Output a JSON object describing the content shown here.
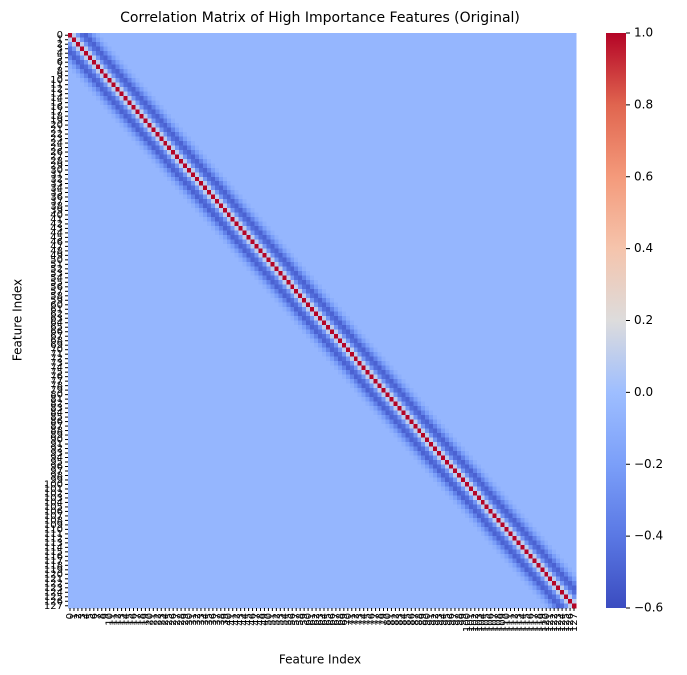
{
  "chart_data": {
    "type": "heatmap",
    "title": "Correlation Matrix of High Importance Features (Original)",
    "x_label": "Feature Index",
    "y_label": "Feature Index",
    "categories": [
      0,
      1,
      2,
      3,
      4,
      5,
      6,
      7,
      8,
      9,
      10,
      11,
      12,
      13,
      14,
      15,
      16,
      17,
      18,
      19,
      20,
      21,
      22,
      23,
      24,
      25,
      26,
      27,
      28,
      29,
      30,
      31,
      32,
      33,
      34,
      35,
      36,
      37,
      38,
      39,
      40,
      41,
      42,
      43,
      44,
      45,
      46,
      47,
      48,
      49,
      50,
      51,
      52,
      53,
      54,
      55,
      56,
      57,
      58,
      59,
      60,
      61,
      62,
      63,
      64,
      65,
      66,
      67,
      68,
      69,
      70,
      71,
      72,
      73,
      74,
      75,
      76,
      77,
      78,
      79,
      80,
      81,
      82,
      83,
      84,
      85,
      86,
      87,
      88,
      89,
      90,
      91,
      92,
      93,
      94,
      95,
      96,
      97,
      98,
      99,
      100,
      101,
      102,
      103,
      104,
      105,
      106,
      107,
      108,
      109,
      110,
      111,
      112,
      113,
      114,
      115,
      116,
      117,
      118,
      119,
      120,
      121,
      122,
      123,
      124,
      125,
      126,
      127
    ],
    "values_by_offset": [
      1,
      0.1,
      -0.25,
      -0.45,
      -0.5,
      -0.35,
      -0.2,
      -0.1,
      -0.05,
      -0.05,
      -0.05,
      -0.05,
      -0.05,
      -0.05,
      -0.05,
      -0.05,
      -0.05,
      -0.05,
      -0.05,
      -0.05,
      -0.05,
      -0.05,
      -0.05,
      -0.05,
      -0.05,
      -0.05,
      -0.05,
      -0.05,
      -0.05,
      -0.05,
      -0.05,
      -0.05,
      -0.05,
      -0.05,
      -0.05,
      -0.05,
      -0.05,
      -0.05,
      -0.05,
      -0.05,
      -0.05,
      -0.05,
      -0.05,
      -0.05,
      -0.05,
      -0.05,
      -0.05,
      -0.05,
      -0.05,
      -0.05,
      -0.05,
      -0.05,
      -0.05,
      -0.05,
      -0.05,
      -0.05,
      -0.05,
      -0.05,
      -0.05,
      -0.05,
      -0.05,
      -0.05,
      -0.05,
      -0.05,
      -0.05,
      -0.05,
      -0.05,
      -0.05,
      -0.05,
      -0.05,
      -0.05,
      -0.05,
      -0.05,
      -0.05,
      -0.05,
      -0.05,
      -0.05,
      -0.05,
      -0.05,
      -0.05,
      -0.05,
      -0.05,
      -0.05,
      -0.05,
      -0.05,
      -0.05,
      -0.05,
      -0.05,
      -0.05,
      -0.05,
      -0.05,
      -0.05,
      -0.05,
      -0.05,
      -0.05,
      -0.05,
      -0.05,
      -0.05,
      -0.05,
      -0.05,
      -0.05,
      -0.05,
      -0.05,
      -0.05,
      -0.05,
      -0.05,
      -0.05,
      -0.05,
      -0.05,
      -0.05,
      -0.05,
      -0.05,
      -0.05,
      -0.05,
      -0.05,
      -0.05,
      -0.05,
      -0.05,
      -0.05,
      -0.05,
      -0.05,
      -0.05,
      -0.05,
      -0.05,
      -0.05,
      -0.05,
      -0.05,
      -0.05
    ],
    "colormap": "coolwarm",
    "clim": [
      -0.6,
      1.0
    ],
    "cticks": [
      {
        "value": -0.6,
        "label": "−0.6"
      },
      {
        "value": -0.4,
        "label": "−0.4"
      },
      {
        "value": -0.2,
        "label": "−0.2"
      },
      {
        "value": 0,
        "label": "0.0"
      },
      {
        "value": 0.2,
        "label": "0.2"
      },
      {
        "value": 0.4,
        "label": "0.4"
      },
      {
        "value": 0.6,
        "label": "0.6"
      },
      {
        "value": 0.8,
        "label": "0.8"
      },
      {
        "value": 1.0,
        "label": "1.0"
      }
    ]
  }
}
